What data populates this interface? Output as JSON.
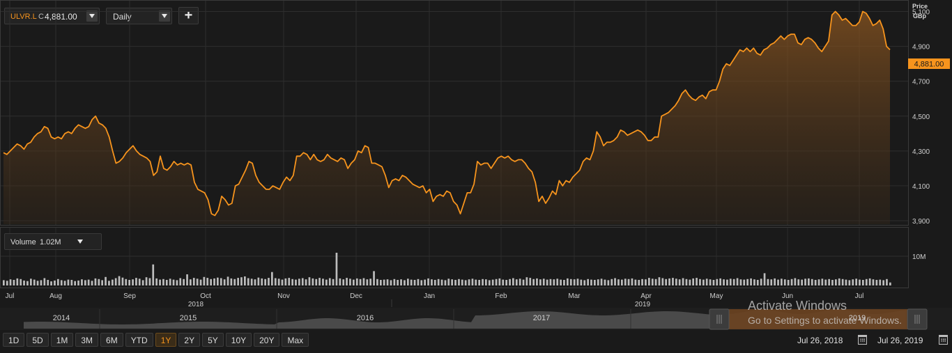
{
  "toolbar": {
    "symbol": "ULVR.L",
    "quote_prefix": "C",
    "last_value": "4,881.00",
    "interval": "Daily",
    "add_label": "+"
  },
  "volume_panel": {
    "label": "Volume",
    "value": "1.02M"
  },
  "colors": {
    "line": "#f7941d",
    "area_top": "#7a4d1e",
    "volume_bar": "#cfcfcf",
    "background": "#1a1a1a",
    "grid": "#2e2e2e"
  },
  "chart_data": [
    {
      "type": "line",
      "title": "",
      "ylabel": "Price GBp",
      "ylabel_line1": "Price",
      "ylabel_line2": "GBp",
      "ylim": [
        3880,
        5150
      ],
      "y_ticks": [
        "5,100",
        "4,900",
        "4,700",
        "4,500",
        "4,300",
        "4,100",
        "3,900"
      ],
      "y_tick_values": [
        5100,
        4900,
        4700,
        4500,
        4300,
        4100,
        3900
      ],
      "last_label": "4,881.00",
      "last_value": 4881,
      "x_ticks": [
        "Jul",
        "Aug",
        "Sep",
        "Oct",
        "Nov",
        "Dec",
        "Jan",
        "Feb",
        "Mar",
        "Apr",
        "May",
        "Jun",
        "Jul"
      ],
      "year_labels": [
        "2018",
        "2019"
      ],
      "x_range": [
        "Jul 26, 2018",
        "Jul 26, 2019"
      ],
      "area_fill": true,
      "grid": true,
      "series": [
        {
          "values": [
            4290,
            4280,
            4300,
            4320,
            4340,
            4330,
            4310,
            4340,
            4350,
            4380,
            4400,
            4410,
            4440,
            4430,
            4380,
            4370,
            4380,
            4370,
            4400,
            4410,
            4400,
            4430,
            4450,
            4440,
            4430,
            4440,
            4480,
            4500,
            4460,
            4450,
            4430,
            4380,
            4300,
            4230,
            4240,
            4260,
            4290,
            4310,
            4330,
            4300,
            4280,
            4270,
            4260,
            4240,
            4160,
            4180,
            4270,
            4200,
            4190,
            4210,
            4240,
            4220,
            4230,
            4220,
            4230,
            4220,
            4120,
            4080,
            4070,
            4060,
            4020,
            3940,
            3930,
            3960,
            4040,
            4020,
            3990,
            4000,
            4100,
            4110,
            4150,
            4190,
            4240,
            4230,
            4160,
            4120,
            4100,
            4080,
            4080,
            4100,
            4090,
            4080,
            4120,
            4150,
            4130,
            4160,
            4270,
            4270,
            4290,
            4280,
            4250,
            4280,
            4250,
            4240,
            4250,
            4280,
            4260,
            4250,
            4240,
            4260,
            4250,
            4200,
            4230,
            4250,
            4300,
            4290,
            4330,
            4320,
            4230,
            4230,
            4220,
            4210,
            4160,
            4090,
            4130,
            4140,
            4130,
            4160,
            4150,
            4130,
            4110,
            4100,
            4090,
            4100,
            4060,
            4080,
            4010,
            4040,
            4050,
            4040,
            4070,
            4060,
            4010,
            3990,
            3940,
            4000,
            4060,
            4060,
            4110,
            4240,
            4220,
            4230,
            4230,
            4200,
            4230,
            4260,
            4270,
            4260,
            4270,
            4250,
            4240,
            4250,
            4250,
            4230,
            4200,
            4180,
            4120,
            4010,
            4040,
            4000,
            4030,
            4070,
            4050,
            4130,
            4100,
            4130,
            4120,
            4150,
            4170,
            4190,
            4240,
            4260,
            4250,
            4300,
            4410,
            4380,
            4330,
            4350,
            4350,
            4360,
            4380,
            4420,
            4410,
            4390,
            4400,
            4410,
            4420,
            4410,
            4390,
            4360,
            4360,
            4380,
            4380,
            4500,
            4510,
            4520,
            4540,
            4560,
            4590,
            4630,
            4650,
            4620,
            4600,
            4590,
            4610,
            4620,
            4600,
            4640,
            4650,
            4650,
            4700,
            4770,
            4800,
            4790,
            4820,
            4850,
            4880,
            4870,
            4890,
            4870,
            4890,
            4860,
            4850,
            4880,
            4890,
            4910,
            4920,
            4940,
            4960,
            4940,
            4960,
            4970,
            4970,
            4920,
            4910,
            4940,
            4950,
            4940,
            4920,
            4890,
            4870,
            4900,
            4930,
            5080,
            5100,
            5080,
            5050,
            5060,
            5040,
            5020,
            5020,
            5040,
            5100,
            5090,
            5060,
            5020,
            5030,
            5050,
            5000,
            4900,
            4881
          ]
        }
      ]
    },
    {
      "type": "bar",
      "title": "",
      "ylabel": "Volume",
      "y_ticks": [
        "10M"
      ],
      "y_tick_values": [
        10000000
      ],
      "ylim": [
        0,
        20000000
      ],
      "values": [
        1.8,
        1.6,
        2.1,
        1.9,
        2.4,
        2.2,
        1.7,
        1.5,
        2.3,
        2.0,
        1.6,
        1.8,
        2.5,
        1.9,
        1.4,
        1.7,
        2.2,
        1.8,
        1.6,
        2.0,
        1.9,
        1.5,
        1.7,
        2.1,
        1.8,
        2.0,
        1.6,
        2.4,
        2.2,
        1.8,
        2.9,
        1.6,
        2.0,
        2.5,
        3.2,
        2.7,
        2.2,
        1.9,
        2.1,
        2.6,
        2.3,
        1.8,
        2.8,
        2.5,
        7.2,
        2.4,
        2.0,
        2.2,
        1.9,
        2.3,
        2.0,
        1.8,
        2.5,
        2.2,
        3.8,
        2.1,
        2.6,
        2.3,
        2.0,
        2.9,
        2.6,
        2.2,
        2.4,
        2.7,
        2.5,
        2.1,
        3.0,
        2.4,
        2.2,
        2.6,
        2.8,
        3.1,
        2.5,
        2.3,
        2.1,
        2.7,
        2.4,
        2.2,
        2.6,
        4.6,
        2.5,
        2.3,
        2.0,
        2.4,
        2.6,
        2.2,
        2.0,
        2.3,
        2.5,
        2.1,
        2.8,
        2.4,
        2.2,
        2.6,
        2.3,
        2.0,
        2.5,
        2.2,
        11.2,
        2.4,
        2.1,
        2.6,
        2.3,
        2.0,
        2.4,
        2.2,
        2.5,
        2.1,
        2.3,
        4.9,
        2.2,
        1.9,
        2.0,
        2.1,
        1.8,
        2.2,
        1.9,
        2.1,
        1.8,
        2.3,
        2.0,
        1.9,
        2.2,
        1.8,
        2.0,
        2.4,
        2.1,
        1.9,
        2.2,
        2.0,
        1.8,
        2.3,
        2.1,
        1.9,
        2.2,
        2.0,
        1.8,
        2.1,
        2.3,
        2.0,
        1.9,
        2.2,
        2.1,
        1.8,
        2.0,
        2.2,
        2.4,
        2.0,
        1.9,
        2.2,
        2.5,
        2.1,
        2.3,
        2.0,
        2.8,
        2.6,
        2.2,
        2.4,
        2.1,
        2.3,
        2.0,
        2.2,
        2.1,
        2.3,
        2.0,
        1.9,
        2.4,
        2.2,
        2.1,
        2.3,
        2.0,
        1.8,
        2.2,
        2.0,
        1.9,
        2.1,
        2.3,
        2.0,
        1.8,
        2.2,
        2.5,
        2.1,
        2.0,
        2.3,
        2.2,
        2.4,
        2.0,
        1.9,
        2.2,
        2.1,
        2.6,
        2.3,
        2.2,
        2.8,
        2.5,
        2.2,
        2.4,
        2.6,
        2.3,
        2.1,
        2.5,
        2.2,
        2.0,
        2.4,
        2.6,
        2.2,
        2.0,
        2.3,
        2.1,
        1.9,
        2.2,
        2.4,
        2.1,
        2.0,
        2.3,
        2.2,
        2.5,
        2.1,
        2.0,
        2.2,
        2.4,
        2.1,
        1.9,
        2.3,
        4.2,
        2.2,
        2.1,
        2.4,
        2.0,
        2.3,
        2.1,
        1.9,
        2.2,
        2.5,
        2.1,
        2.0,
        2.3,
        2.4,
        2.2,
        1.9,
        2.1,
        2.3,
        2.0,
        2.2,
        1.9,
        2.1,
        2.4,
        2.2,
        2.0,
        1.8,
        2.1,
        2.3,
        2.0,
        1.9,
        2.2,
        2.4,
        2.1,
        1.9,
        2.0,
        1.8,
        2.2,
        1.02
      ]
    }
  ],
  "navigator": {
    "years": [
      "2014",
      "2015",
      "2016",
      "2017",
      "2019"
    ]
  },
  "range_buttons": [
    "1D",
    "5D",
    "1M",
    "3M",
    "6M",
    "YTD",
    "1Y",
    "2Y",
    "5Y",
    "10Y",
    "20Y",
    "Max"
  ],
  "active_range": "1Y",
  "date_range": {
    "from": "Jul 26, 2018",
    "to": "Jul 26, 2019"
  },
  "watermark": {
    "line1": "Activate Windows",
    "line2": "Go to Settings to activate Windows."
  }
}
